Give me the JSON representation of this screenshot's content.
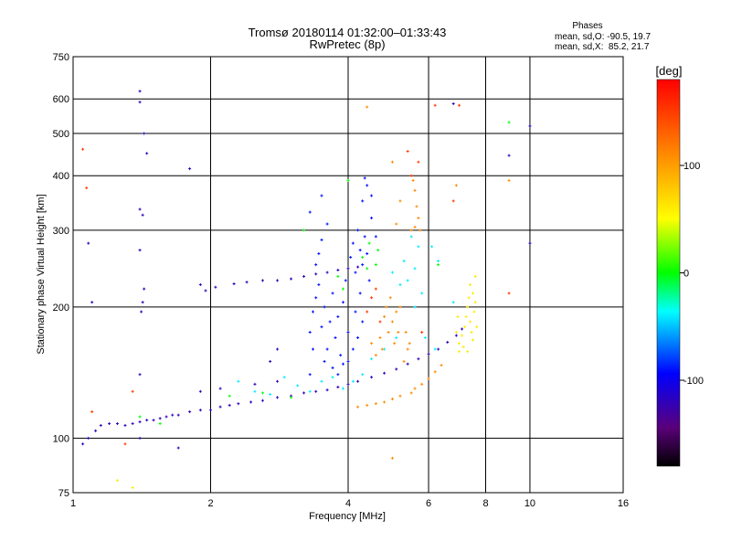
{
  "chart_data": {
    "type": "scatter",
    "title": "Tromsø 20180114 01:32:00–01:33:43",
    "subtitle": "RwPretec (8p)",
    "xlabel": "Frequency [MHz]",
    "ylabel": "Stationary phase Virtual Height [km]",
    "x_scale": "log",
    "y_scale": "log",
    "xlim": [
      1,
      16
    ],
    "ylim": [
      75,
      750
    ],
    "x_ticks": [
      1,
      2,
      4,
      6,
      8,
      10,
      16
    ],
    "y_ticks": [
      75,
      100,
      200,
      300,
      400,
      500,
      600,
      750
    ],
    "x_gridlines": [
      1,
      2,
      4,
      6,
      8,
      10,
      16
    ],
    "y_gridlines": [
      75,
      100,
      200,
      300,
      400,
      500,
      600,
      750
    ],
    "grid": true,
    "phase_info": {
      "heading": "Phases",
      "line_o": "mean, sd,O: -90.5, 19.7",
      "line_x": "mean, sd,X:  85.2, 21.7"
    },
    "colorbar": {
      "label": "[deg]",
      "range": [
        -180,
        180
      ],
      "ticks": [
        -100,
        0,
        100
      ]
    },
    "series": [
      {
        "color_deg": -120,
        "points": [
          [
            1.05,
            97
          ],
          [
            1.08,
            100
          ],
          [
            1.12,
            104
          ],
          [
            1.15,
            107
          ],
          [
            1.2,
            108
          ],
          [
            1.25,
            108
          ],
          [
            1.3,
            107
          ],
          [
            1.35,
            108
          ],
          [
            1.4,
            109
          ],
          [
            1.45,
            110
          ],
          [
            1.5,
            110
          ],
          [
            1.55,
            111
          ],
          [
            1.6,
            112
          ],
          [
            1.65,
            113
          ],
          [
            1.7,
            113
          ],
          [
            1.8,
            115
          ],
          [
            1.9,
            116
          ],
          [
            2.0,
            116
          ],
          [
            2.1,
            118
          ],
          [
            2.2,
            119
          ],
          [
            2.3,
            120
          ],
          [
            2.45,
            121
          ],
          [
            2.6,
            122
          ],
          [
            2.8,
            124
          ],
          [
            3.0,
            125
          ],
          [
            3.2,
            127
          ],
          [
            3.4,
            128
          ],
          [
            3.6,
            129
          ],
          [
            3.8,
            131
          ],
          [
            4.0,
            133
          ],
          [
            4.2,
            135
          ],
          [
            4.5,
            138
          ],
          [
            4.8,
            141
          ],
          [
            5.1,
            144
          ],
          [
            5.4,
            148
          ],
          [
            5.7,
            152
          ],
          [
            6.0,
            156
          ],
          [
            6.3,
            160
          ],
          [
            6.6,
            166
          ],
          [
            6.9,
            172
          ],
          [
            7.1,
            178
          ],
          [
            2.1,
            130
          ],
          [
            2.5,
            133
          ],
          [
            2.8,
            135
          ],
          [
            1.9,
            128
          ],
          [
            2.25,
            226
          ],
          [
            2.4,
            228
          ],
          [
            2.6,
            230
          ],
          [
            2.8,
            230
          ],
          [
            3.0,
            232
          ],
          [
            3.2,
            235
          ],
          [
            3.4,
            238
          ],
          [
            3.6,
            240
          ],
          [
            3.8,
            243
          ],
          [
            4.0,
            245
          ],
          [
            4.2,
            247
          ],
          [
            1.4,
            625
          ],
          [
            1.4,
            590
          ],
          [
            1.43,
            500
          ],
          [
            1.45,
            450
          ],
          [
            1.4,
            335
          ],
          [
            1.42,
            325
          ],
          [
            1.4,
            270
          ],
          [
            1.43,
            220
          ],
          [
            1.42,
            205
          ],
          [
            1.41,
            195
          ],
          [
            1.4,
            140
          ],
          [
            1.4,
            100
          ],
          [
            1.8,
            415
          ],
          [
            1.9,
            225
          ],
          [
            1.95,
            218
          ],
          [
            2.05,
            222
          ],
          [
            2.8,
            160
          ],
          [
            2.7,
            150
          ],
          [
            1.08,
            280
          ],
          [
            1.1,
            205
          ],
          [
            6.8,
            585
          ],
          [
            9.0,
            445
          ],
          [
            10.0,
            520
          ],
          [
            10.0,
            280
          ],
          [
            1.7,
            95
          ]
        ]
      },
      {
        "color_deg": -90,
        "points": [
          [
            3.3,
            175
          ],
          [
            3.35,
            195
          ],
          [
            3.4,
            210
          ],
          [
            3.45,
            225
          ],
          [
            3.5,
            180
          ],
          [
            3.55,
            200
          ],
          [
            3.6,
            160
          ],
          [
            3.65,
            185
          ],
          [
            3.7,
            215
          ],
          [
            3.75,
            170
          ],
          [
            3.8,
            190
          ],
          [
            3.85,
            155
          ],
          [
            3.9,
            205
          ],
          [
            3.95,
            230
          ],
          [
            4.0,
            175
          ],
          [
            4.05,
            260
          ],
          [
            4.1,
            280
          ],
          [
            4.15,
            240
          ],
          [
            4.2,
            300
          ],
          [
            4.25,
            270
          ],
          [
            4.3,
            250
          ],
          [
            4.35,
            290
          ],
          [
            4.4,
            265
          ],
          [
            4.45,
            230
          ],
          [
            3.4,
            250
          ],
          [
            3.45,
            265
          ],
          [
            3.5,
            285
          ],
          [
            3.6,
            310
          ],
          [
            3.55,
            150
          ],
          [
            3.7,
            145
          ],
          [
            3.8,
            140
          ],
          [
            3.9,
            148
          ],
          [
            4.0,
            150
          ],
          [
            4.1,
            160
          ],
          [
            4.2,
            170
          ],
          [
            4.15,
            195
          ],
          [
            4.25,
            215
          ],
          [
            4.3,
            185
          ],
          [
            3.3,
            140
          ],
          [
            3.35,
            160
          ],
          [
            4.3,
            350
          ],
          [
            4.4,
            380
          ],
          [
            4.35,
            395
          ],
          [
            4.5,
            360
          ],
          [
            3.5,
            360
          ],
          [
            3.3,
            330
          ],
          [
            4.6,
            290
          ],
          [
            4.5,
            320
          ]
        ]
      },
      {
        "color_deg": -40,
        "points": [
          [
            2.3,
            135
          ],
          [
            2.5,
            128
          ],
          [
            2.7,
            126
          ],
          [
            2.9,
            138
          ],
          [
            3.1,
            132
          ],
          [
            3.3,
            128
          ],
          [
            3.5,
            135
          ],
          [
            3.7,
            138
          ],
          [
            3.9,
            130
          ],
          [
            4.1,
            135
          ],
          [
            4.3,
            140
          ],
          [
            4.5,
            152
          ],
          [
            4.8,
            160
          ],
          [
            5.1,
            170
          ],
          [
            5.3,
            255
          ],
          [
            5.5,
            290
          ],
          [
            5.6,
            245
          ],
          [
            5.7,
            275
          ],
          [
            5.8,
            215
          ],
          [
            5.4,
            230
          ],
          [
            5.6,
            200
          ],
          [
            5.9,
            170
          ],
          [
            6.2,
            160
          ],
          [
            6.1,
            275
          ],
          [
            6.3,
            255
          ],
          [
            5.2,
            225
          ],
          [
            5.0,
            240
          ],
          [
            6.8,
            205
          ]
        ]
      },
      {
        "color_deg": 60,
        "points": [
          [
            7.0,
            165
          ],
          [
            7.1,
            172
          ],
          [
            7.2,
            180
          ],
          [
            7.25,
            190
          ],
          [
            7.3,
            200
          ],
          [
            7.35,
            210
          ],
          [
            7.4,
            185
          ],
          [
            7.45,
            175
          ],
          [
            7.5,
            168
          ],
          [
            7.55,
            195
          ],
          [
            7.6,
            205
          ],
          [
            7.0,
            158
          ],
          [
            7.15,
            162
          ],
          [
            7.3,
            158
          ],
          [
            6.9,
            175
          ],
          [
            6.95,
            190
          ],
          [
            7.65,
            180
          ],
          [
            7.5,
            215
          ],
          [
            7.4,
            225
          ],
          [
            7.6,
            235
          ],
          [
            1.35,
            77
          ],
          [
            1.25,
            80
          ]
        ]
      },
      {
        "color_deg": 110,
        "points": [
          [
            4.8,
            190
          ],
          [
            4.85,
            200
          ],
          [
            4.9,
            175
          ],
          [
            4.95,
            210
          ],
          [
            5.0,
            185
          ],
          [
            5.05,
            165
          ],
          [
            5.1,
            195
          ],
          [
            5.15,
            175
          ],
          [
            5.2,
            200
          ],
          [
            4.7,
            170
          ],
          [
            4.75,
            160
          ],
          [
            4.6,
            155
          ],
          [
            4.5,
            165
          ],
          [
            5.3,
            150
          ],
          [
            5.4,
            160
          ],
          [
            5.35,
            175
          ],
          [
            5.45,
            165
          ],
          [
            5.6,
            130
          ],
          [
            5.8,
            133
          ],
          [
            6.0,
            137
          ],
          [
            6.2,
            142
          ],
          [
            6.4,
            147
          ],
          [
            5.5,
            127
          ],
          [
            5.2,
            125
          ],
          [
            5.0,
            123
          ],
          [
            4.8,
            121
          ],
          [
            4.6,
            120
          ],
          [
            4.4,
            119
          ],
          [
            4.2,
            118
          ],
          [
            5.6,
            370
          ],
          [
            5.65,
            340
          ],
          [
            5.7,
            320
          ],
          [
            5.75,
            300
          ],
          [
            5.6,
            305
          ],
          [
            5.55,
            390
          ],
          [
            5.0,
            430
          ],
          [
            5.2,
            350
          ],
          [
            5.1,
            310
          ],
          [
            4.4,
            575
          ],
          [
            6.9,
            380
          ],
          [
            9.0,
            390
          ],
          [
            5.5,
            300
          ],
          [
            5.0,
            90
          ]
        ]
      },
      {
        "color_deg": 150,
        "points": [
          [
            4.6,
            220
          ],
          [
            4.5,
            210
          ],
          [
            4.4,
            195
          ],
          [
            4.7,
            185
          ],
          [
            5.4,
            455
          ],
          [
            5.5,
            400
          ],
          [
            5.7,
            430
          ],
          [
            6.2,
            580
          ],
          [
            7.0,
            580
          ],
          [
            6.8,
            350
          ],
          [
            1.05,
            460
          ],
          [
            1.07,
            375
          ],
          [
            9.0,
            215
          ],
          [
            1.1,
            115
          ],
          [
            1.35,
            128
          ],
          [
            1.3,
            97
          ],
          [
            5.8,
            175
          ]
        ]
      },
      {
        "color_deg": 0,
        "points": [
          [
            4.3,
            260
          ],
          [
            4.4,
            245
          ],
          [
            4.45,
            280
          ],
          [
            4.6,
            250
          ],
          [
            4.65,
            270
          ],
          [
            3.8,
            235
          ],
          [
            3.9,
            220
          ],
          [
            2.2,
            125
          ],
          [
            2.6,
            127
          ],
          [
            3.0,
            124
          ],
          [
            4.0,
            390
          ],
          [
            3.2,
            300
          ],
          [
            1.55,
            108
          ],
          [
            1.4,
            112
          ],
          [
            9.0,
            530
          ],
          [
            6.3,
            250
          ]
        ]
      }
    ]
  }
}
